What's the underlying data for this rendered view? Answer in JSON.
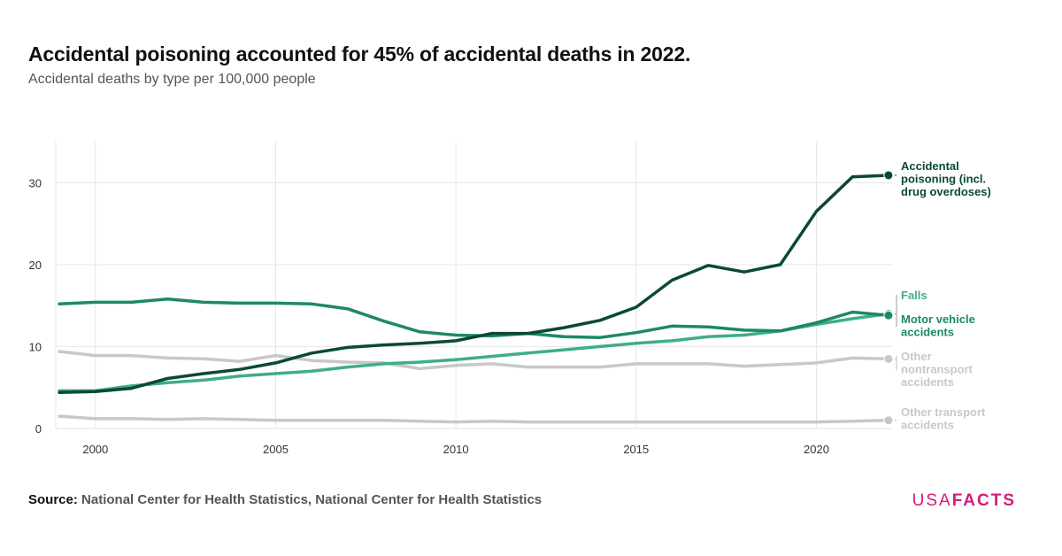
{
  "header": {
    "title": "Accidental poisoning accounted for 45% of accidental deaths in 2022.",
    "subtitle": "Accidental deaths by type per 100,000 people"
  },
  "footer": {
    "source_label": "Source:",
    "source_text": "National Center for Health Statistics, National Center for Health Statistics",
    "brand_usa": "USA",
    "brand_facts": "FACTS"
  },
  "colors": {
    "poisoning": "#0b4a2f",
    "motor": "#1d8a60",
    "falls": "#3fae86",
    "other_gray": "#c8c8c8",
    "grid": "#e6e6e6",
    "brand": "#d6197e"
  },
  "chart_data": {
    "type": "line",
    "x": [
      1999,
      2000,
      2001,
      2002,
      2003,
      2004,
      2005,
      2006,
      2007,
      2008,
      2009,
      2010,
      2011,
      2012,
      2013,
      2014,
      2015,
      2016,
      2017,
      2018,
      2019,
      2020,
      2021,
      2022
    ],
    "x_ticks": [
      2000,
      2005,
      2010,
      2015,
      2020
    ],
    "y_ticks": [
      0,
      10,
      20,
      30
    ],
    "xlim": [
      1998.9,
      2022.1
    ],
    "ylim": [
      0,
      35
    ],
    "grid": true,
    "legend": "direct labels at right",
    "series": [
      {
        "key": "other_transport",
        "label_lines": [
          "Other transport",
          "accidents"
        ],
        "values": [
          1.5,
          1.2,
          1.2,
          1.1,
          1.2,
          1.1,
          1.0,
          1.0,
          1.0,
          1.0,
          0.9,
          0.8,
          0.9,
          0.8,
          0.8,
          0.8,
          0.8,
          0.8,
          0.8,
          0.8,
          0.8,
          0.8,
          0.9,
          1.0
        ]
      },
      {
        "key": "other_nontransport",
        "label_lines": [
          "Other",
          "nontransport",
          "accidents"
        ],
        "values": [
          9.4,
          8.9,
          8.9,
          8.6,
          8.5,
          8.2,
          8.9,
          8.3,
          8.1,
          8.0,
          7.3,
          7.7,
          7.9,
          7.5,
          7.5,
          7.5,
          7.9,
          7.9,
          7.9,
          7.6,
          7.8,
          8.0,
          8.6,
          8.5
        ]
      },
      {
        "key": "falls",
        "label_lines": [
          "Falls"
        ],
        "values": [
          4.6,
          4.6,
          5.2,
          5.6,
          5.9,
          6.4,
          6.7,
          7.0,
          7.5,
          7.9,
          8.1,
          8.4,
          8.8,
          9.2,
          9.6,
          10.0,
          10.4,
          10.7,
          11.2,
          11.4,
          11.9,
          12.7,
          13.4,
          14.0
        ]
      },
      {
        "key": "motor",
        "label_lines": [
          "Motor vehicle",
          "accidents"
        ],
        "values": [
          15.2,
          15.4,
          15.4,
          15.8,
          15.4,
          15.3,
          15.3,
          15.2,
          14.6,
          13.1,
          11.8,
          11.4,
          11.3,
          11.6,
          11.2,
          11.1,
          11.7,
          12.5,
          12.4,
          12.0,
          11.9,
          12.9,
          14.2,
          13.8
        ]
      },
      {
        "key": "poisoning",
        "label_lines": [
          "Accidental",
          "poisoning (incl.",
          "drug overdoses)"
        ],
        "values": [
          4.4,
          4.5,
          4.9,
          6.1,
          6.7,
          7.2,
          8.0,
          9.2,
          9.9,
          10.2,
          10.4,
          10.7,
          11.6,
          11.6,
          12.3,
          13.2,
          14.8,
          18.1,
          19.9,
          19.1,
          20.0,
          26.5,
          30.7,
          30.9
        ]
      }
    ]
  }
}
